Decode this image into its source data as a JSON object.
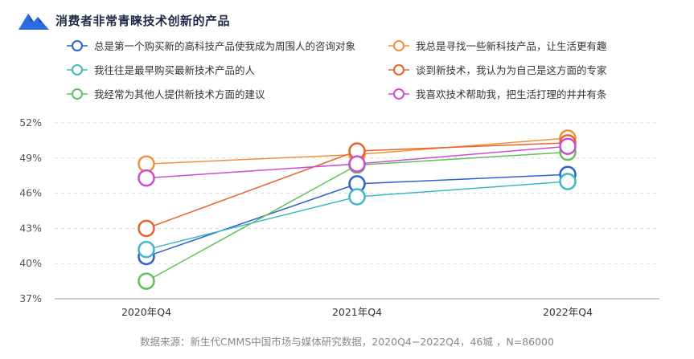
{
  "header": {
    "title": "消费者非常青睐技术创新的产品",
    "logo_icon": "mountain-logo-icon"
  },
  "chart_data": {
    "type": "line",
    "title": "消费者非常青睐技术创新的产品",
    "categories": [
      "2020年Q4",
      "2021年Q4",
      "2022年Q4"
    ],
    "yticks": [
      "37%",
      "40%",
      "43%",
      "46%",
      "49%",
      "52%"
    ],
    "ylim": [
      37,
      52
    ],
    "xlabel": "",
    "ylabel": "",
    "grid": true,
    "legend_position": "top",
    "series": [
      {
        "name": "总是第一个购买新的高科技产品使我成为周围人的咨询对象",
        "color": "#2f5fd0",
        "values": [
          40.6,
          46.8,
          47.6
        ]
      },
      {
        "name": "我总是寻找一些新科技产品，让生活更有趣",
        "color": "#f0913d",
        "values": [
          48.5,
          49.3,
          50.7
        ]
      },
      {
        "name": "我往往是最早购买最新技术产品的人",
        "color": "#3bb9c4",
        "values": [
          41.2,
          45.7,
          47.0
        ]
      },
      {
        "name": "谈到新技术，我认为为自己是这方面的专家",
        "color": "#e8622a",
        "values": [
          43.0,
          49.6,
          50.3
        ]
      },
      {
        "name": "我经常为其他人提供新技术方面的建议",
        "color": "#63bf5b",
        "values": [
          38.5,
          48.4,
          49.5
        ]
      },
      {
        "name": "我喜欢技术帮助我，把生活打理的井井有条",
        "color": "#c74fcf",
        "values": [
          47.3,
          48.5,
          50.0
        ]
      }
    ]
  },
  "footer": {
    "source": "数据来源：新生代CMMS中国市场与媒体研究数据，2020Q4−2022Q4，46城 ，N=86000"
  }
}
